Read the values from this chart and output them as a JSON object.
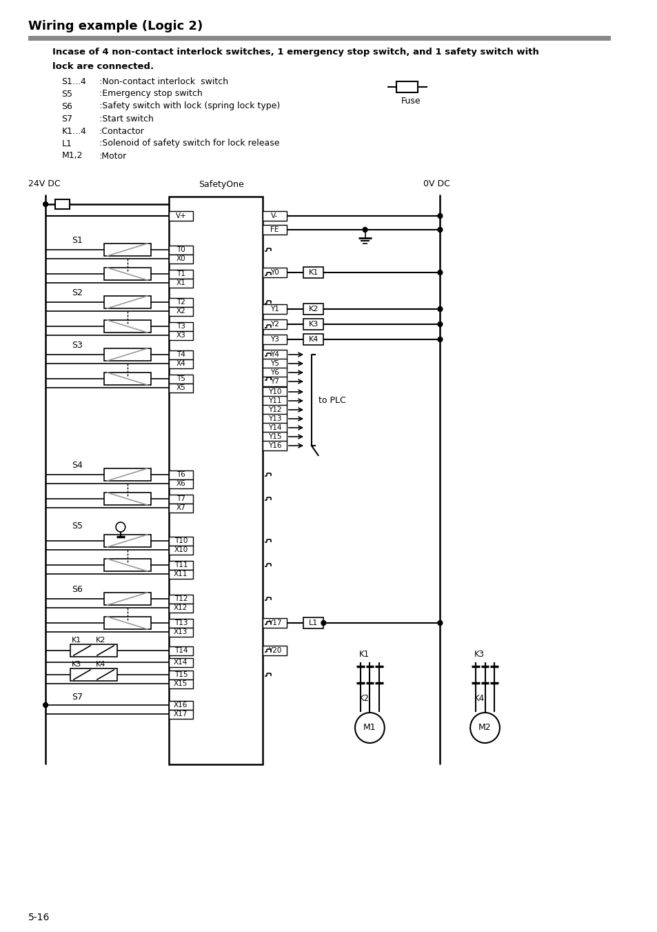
{
  "title": "Wiring example (Logic 2)",
  "subtitle1": "Incase of 4 non-contact interlock switches, 1 emergency stop switch, and 1 safety switch with",
  "subtitle2": "lock are connected.",
  "legend": [
    [
      "S1...4",
      ":Non-contact interlock  switch"
    ],
    [
      "S5",
      ":Emergency stop switch"
    ],
    [
      "S6",
      ":Safety switch with lock (spring lock type)"
    ],
    [
      "S7",
      ":Start switch"
    ],
    [
      "K1...4",
      ":Contactor"
    ],
    [
      "L1",
      ":Solenoid of safety switch for lock release"
    ],
    [
      "M1,2",
      ":Motor"
    ]
  ],
  "fuse_label": "Fuse",
  "v24": "24V DC",
  "v0": "0V DC",
  "safetyone": "SafetyOne",
  "page": "5-16",
  "gray_bar": "#888888",
  "lc": "#000000",
  "gc": "#999999"
}
